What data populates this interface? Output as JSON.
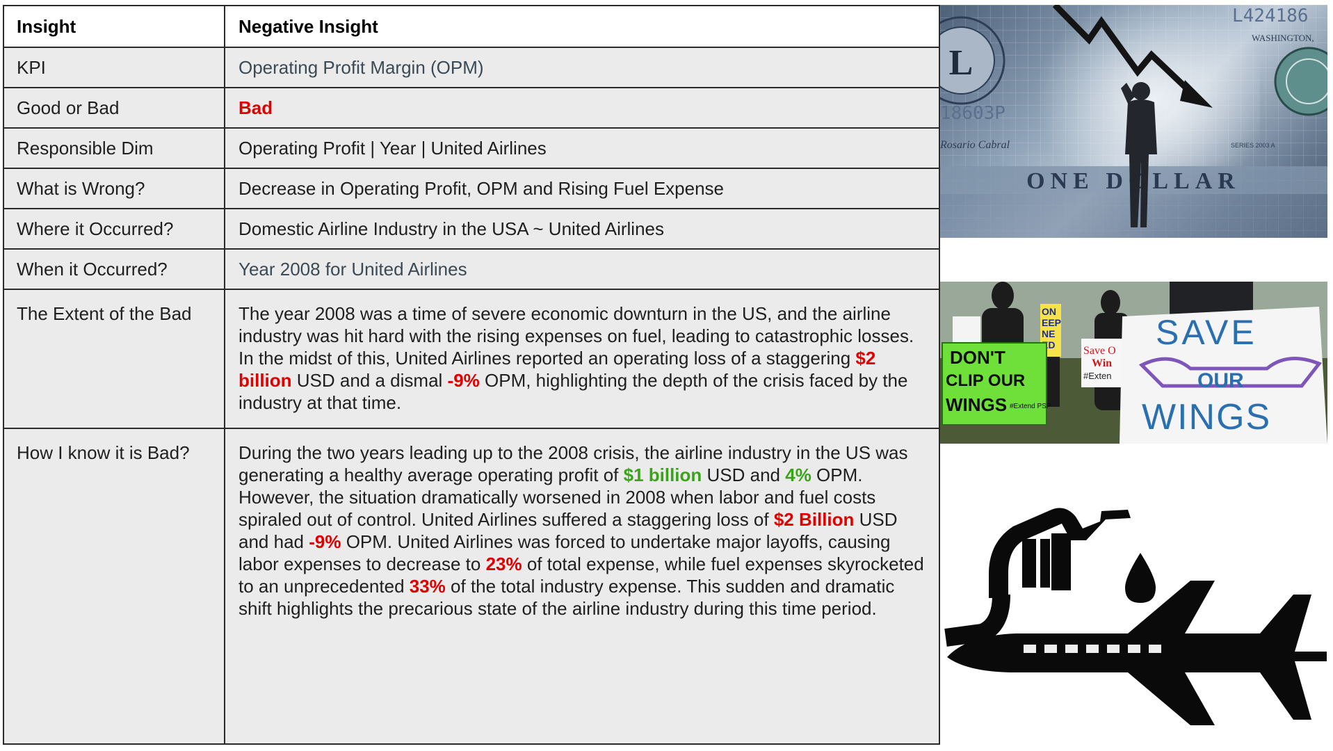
{
  "table": {
    "header": {
      "left": "Insight",
      "right": "Negative Insight"
    },
    "rows": {
      "kpi": {
        "label": "KPI",
        "value": "Operating Profit Margin (OPM)"
      },
      "good_or_bad": {
        "label": "Good or Bad",
        "value": "Bad"
      },
      "responsible_dim": {
        "label": "Responsible Dim",
        "value": "Operating Profit | Year | United Airlines"
      },
      "what_is_wrong": {
        "label": "What is Wrong?",
        "value": "Decrease in Operating Profit, OPM and Rising Fuel Expense"
      },
      "where": {
        "label": "Where it Occurred?",
        "value": "Domestic Airline Industry in the USA ~ United Airlines"
      },
      "when": {
        "label": "When it Occurred?",
        "value": "Year 2008 for United Airlines"
      },
      "extent": {
        "label": "The Extent of the Bad",
        "p1": "The year 2008 was a time of severe economic downturn in the US, and the airline industry was hit hard with the rising expenses on fuel, leading to catastrophic losses. In the midst of this, United Airlines reported an operating loss of a staggering ",
        "h1": "$2 billion",
        "p2": " USD and a dismal ",
        "h2": "-9%",
        "p3": " OPM, highlighting the depth of the crisis faced by the industry at that time."
      },
      "how_i_know": {
        "label": "How I know it is Bad?",
        "p1": "During the two years leading up to the 2008 crisis, the airline industry in the US was generating a healthy average operating profit of ",
        "g1": "$1 billion",
        "p2": " USD and ",
        "g2": "4%",
        "p3": " OPM. However, the situation dramatically worsened in 2008 when labor and fuel costs spiraled out of control. United Airlines suffered a staggering loss of ",
        "r1": "$2 Billion",
        "p4": " USD and had ",
        "r2": "-9%",
        "p5": " OPM. United Airlines was forced to undertake major layoffs, causing labor expenses to decrease to ",
        "r3": "23%",
        "p6": " of total expense, while fuel expenses skyrocketed to an unprecedented ",
        "r4": "33%",
        "p7": " of the total industry expense. This sudden and dramatic shift highlights the precarious state of the airline industry during this time period."
      }
    }
  },
  "images": {
    "dollar": {
      "serial_top": "L424186",
      "serial_left": "18603P",
      "city": "WASHINGTON,",
      "banner": "ONE DOLLAR",
      "series": "SERIES 2003 A",
      "seal_letter": "L"
    },
    "protest": {
      "sign_green": [
        "DON'T",
        "CLIP OUR",
        "WINGS",
        "#Extend PSP"
      ],
      "sign_yellow": [
        "ON",
        "EEP",
        "NE",
        "ED"
      ],
      "sign_small": [
        "Save O",
        "Win",
        "#Exten"
      ],
      "sign_big": [
        "SAVE",
        "OUR",
        "WINGS"
      ]
    },
    "icon": {
      "name": "fuel-nozzle-airplane-icon"
    }
  },
  "colors": {
    "bad": "#e00000",
    "good": "#3aa31a",
    "label_slate": "#3b4a54"
  }
}
